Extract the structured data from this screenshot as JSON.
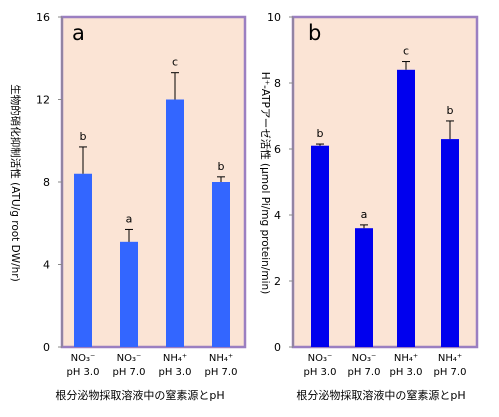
{
  "chart_data": [
    {
      "type": "bar",
      "panel_label": "a",
      "categories": [
        [
          "NO₃⁻",
          "pH 3.0"
        ],
        [
          "NO₃⁻",
          "pH 7.0"
        ],
        [
          "NH₄⁺",
          "pH 3.0"
        ],
        [
          "NH₄⁺",
          "pH 7.0"
        ]
      ],
      "values": [
        8.4,
        5.1,
        12.0,
        8.0
      ],
      "errors": [
        1.3,
        0.6,
        1.3,
        0.25
      ],
      "letters": [
        "b",
        "a",
        "c",
        "b"
      ],
      "ylabel": "生物的硝化抑制活性 (ATU/g root DW/hr)",
      "xlabel": "根分泌物採取溶液中の窒素源とpH",
      "ylim": [
        0,
        16
      ],
      "yticks": [
        0,
        4,
        8,
        12,
        16
      ],
      "bar_color": "#3366ff",
      "plot_bg": "#fbe4d5",
      "frame_color": "#9b7fc1"
    },
    {
      "type": "bar",
      "panel_label": "b",
      "categories": [
        [
          "NO₃⁻",
          "pH 3.0"
        ],
        [
          "NO₃⁻",
          "pH 7.0"
        ],
        [
          "NH₄⁺",
          "pH 3.0"
        ],
        [
          "NH₄⁺",
          "pH 7.0"
        ]
      ],
      "values": [
        6.1,
        3.6,
        8.4,
        6.3
      ],
      "errors": [
        0.05,
        0.1,
        0.25,
        0.55
      ],
      "letters": [
        "b",
        "a",
        "c",
        "b"
      ],
      "ylabel": "H⁺-ATPアーゼ活性 (μmol Pi/mg protein/min)",
      "xlabel": "根分泌物採取溶液中の窒素源とpH",
      "ylim": [
        0,
        10
      ],
      "yticks": [
        0,
        2,
        4,
        6,
        8,
        10
      ],
      "bar_color": "#0000ee",
      "plot_bg": "#fbe4d5",
      "frame_color": "#9b7fc1"
    }
  ]
}
